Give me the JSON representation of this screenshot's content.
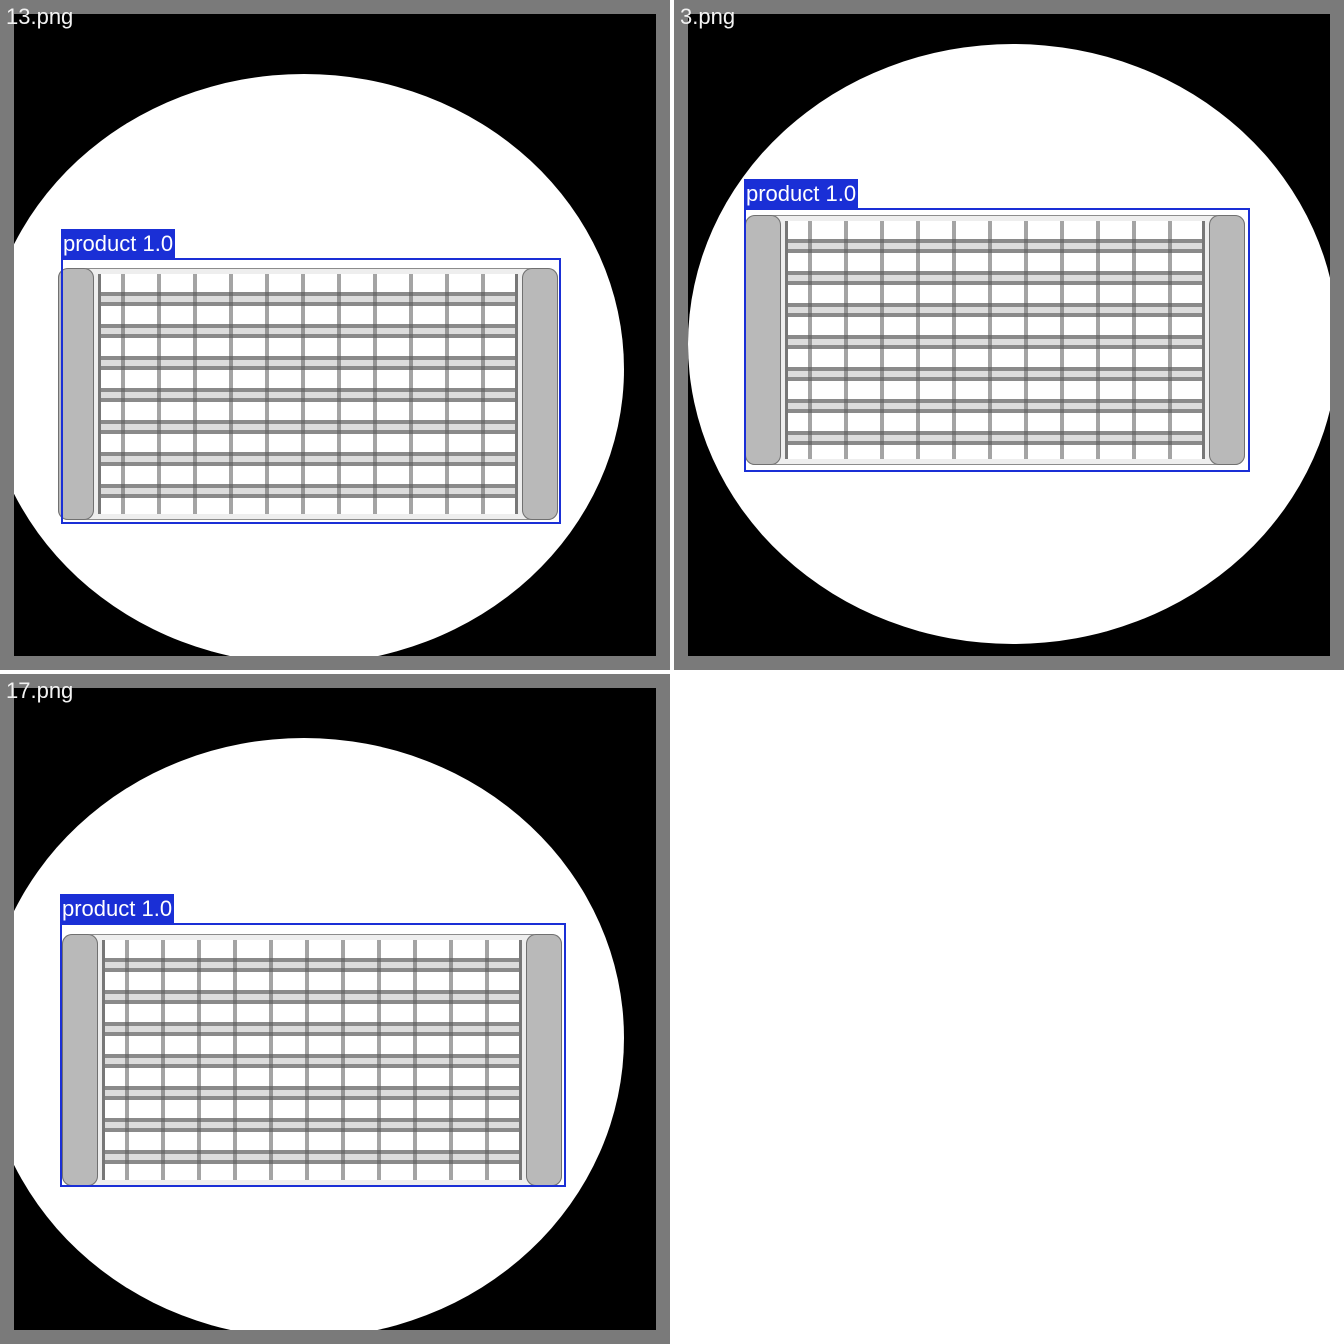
{
  "panels": [
    {
      "filename": "13.png",
      "detection": {
        "class_label": "product",
        "confidence": "1.0"
      }
    },
    {
      "filename": "3.png",
      "detection": {
        "class_label": "product",
        "confidence": "1.0"
      }
    },
    {
      "filename": "17.png",
      "detection": {
        "class_label": "product",
        "confidence": "1.0"
      }
    }
  ],
  "colors": {
    "bbox": "#1a2fd6",
    "panel_border": "#7a7a7a",
    "background": "#ffffff"
  }
}
